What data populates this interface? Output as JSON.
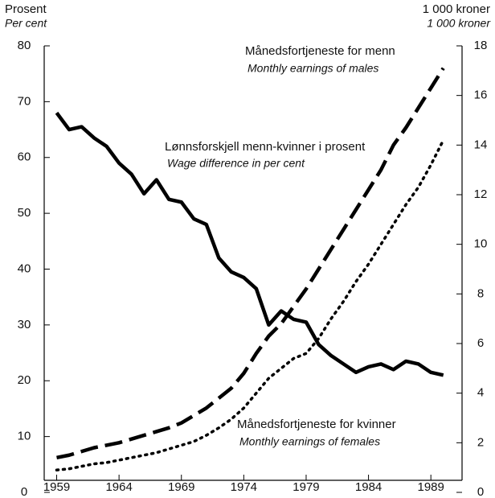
{
  "chart_data": {
    "type": "line",
    "left_axis_label": "Prosent",
    "left_axis_label_en": "Per cent",
    "right_axis_label": "1 000 kroner",
    "right_axis_label_en": "1 000 kroner",
    "x": [
      1959,
      1960,
      1961,
      1962,
      1963,
      1964,
      1965,
      1966,
      1967,
      1968,
      1969,
      1970,
      1971,
      1972,
      1973,
      1974,
      1975,
      1976,
      1977,
      1978,
      1979,
      1980,
      1981,
      1982,
      1983,
      1984,
      1985,
      1986,
      1987,
      1988,
      1989,
      1990
    ],
    "xlim": [
      1958,
      1991.5
    ],
    "xticks": [
      1959,
      1964,
      1969,
      1974,
      1979,
      1984,
      1989
    ],
    "ylim": [
      0,
      80
    ],
    "yticks": [
      0,
      10,
      20,
      30,
      40,
      50,
      60,
      70,
      80
    ],
    "y2lim": [
      0,
      18
    ],
    "y2ticks": [
      0,
      2,
      4,
      6,
      8,
      10,
      12,
      14,
      16,
      18
    ],
    "series": [
      {
        "name": "Lønnsforskjell menn-kvinner i prosent",
        "name_en": "Wage difference in per cent",
        "color": "#000000",
        "style": "solid",
        "axis": "y",
        "values": [
          68,
          65,
          65.5,
          63.5,
          62,
          59,
          57,
          53.5,
          56,
          52.5,
          52,
          49,
          48,
          42,
          39.5,
          38.5,
          36.5,
          30,
          32.5,
          31,
          30.5,
          26.5,
          24.5,
          23,
          21.5,
          22.5,
          23,
          22,
          23.5,
          23,
          21.5,
          21
        ]
      },
      {
        "name": "Månedsfortjeneste for menn",
        "name_en": "Monthly earnings of males",
        "color": "#000000",
        "style": "dashed",
        "axis": "y2",
        "values": [
          1.4,
          1.5,
          1.65,
          1.8,
          1.9,
          2.0,
          2.15,
          2.3,
          2.45,
          2.6,
          2.8,
          3.1,
          3.4,
          3.8,
          4.2,
          4.8,
          5.6,
          6.3,
          6.8,
          7.5,
          8.2,
          9.0,
          9.8,
          10.6,
          11.4,
          12.2,
          13.0,
          14.0,
          14.7,
          15.5,
          16.3,
          17.1
        ]
      },
      {
        "name": "Månedsfortjeneste for kvinner",
        "name_en": "Monthly earnings of females",
        "color": "#000000",
        "style": "dotted",
        "axis": "y2",
        "values": [
          0.9,
          0.95,
          1.05,
          1.15,
          1.2,
          1.3,
          1.4,
          1.5,
          1.6,
          1.75,
          1.9,
          2.05,
          2.3,
          2.6,
          2.95,
          3.4,
          4.0,
          4.6,
          5.0,
          5.4,
          5.6,
          6.2,
          7.0,
          7.7,
          8.5,
          9.2,
          10.0,
          10.8,
          11.6,
          12.3,
          13.2,
          14.2
        ]
      }
    ]
  }
}
